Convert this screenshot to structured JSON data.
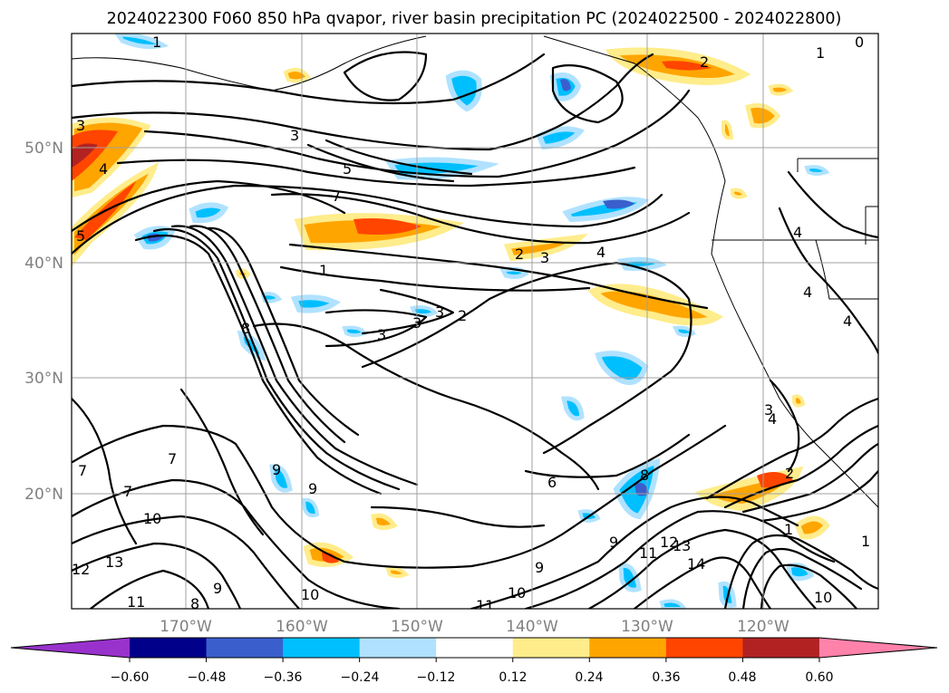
{
  "title": "2024022300 F060 850 hPa qvapor, river basin precipitation PC (2024022500 - 2024022800)",
  "map": {
    "lat_labels": [
      "50°N",
      "40°N",
      "30°N",
      "20°N"
    ],
    "lon_labels": [
      "170°W",
      "160°W",
      "150°W",
      "140°W",
      "130°W",
      "120°W"
    ],
    "contour_labels": [
      "1",
      "0",
      "2",
      "1",
      "3",
      "5",
      "7",
      "3",
      "4",
      "5",
      "1",
      "2",
      "3",
      "4",
      "3",
      "3",
      "3",
      "2",
      "4",
      "4",
      "4",
      "8",
      "7",
      "7",
      "7",
      "9",
      "9",
      "10",
      "13",
      "12",
      "11",
      "8",
      "9",
      "10",
      "11",
      "10",
      "9",
      "6",
      "8",
      "9",
      "11",
      "12",
      "13",
      "14",
      "4",
      "3",
      "1",
      "2",
      "10",
      "1"
    ]
  },
  "colorbar": {
    "ticks": [
      "−0.60",
      "−0.48",
      "−0.36",
      "−0.24",
      "−0.12",
      "0.12",
      "0.24",
      "0.36",
      "0.48",
      "0.60"
    ],
    "colors": [
      "#9932cc",
      "#00008b",
      "#3a5fcd",
      "#00bfff",
      "#b0e2ff",
      "#ffffff",
      "#ffec8b",
      "#ffa500",
      "#ff4500",
      "#b22222",
      "#ff82ab"
    ]
  }
}
